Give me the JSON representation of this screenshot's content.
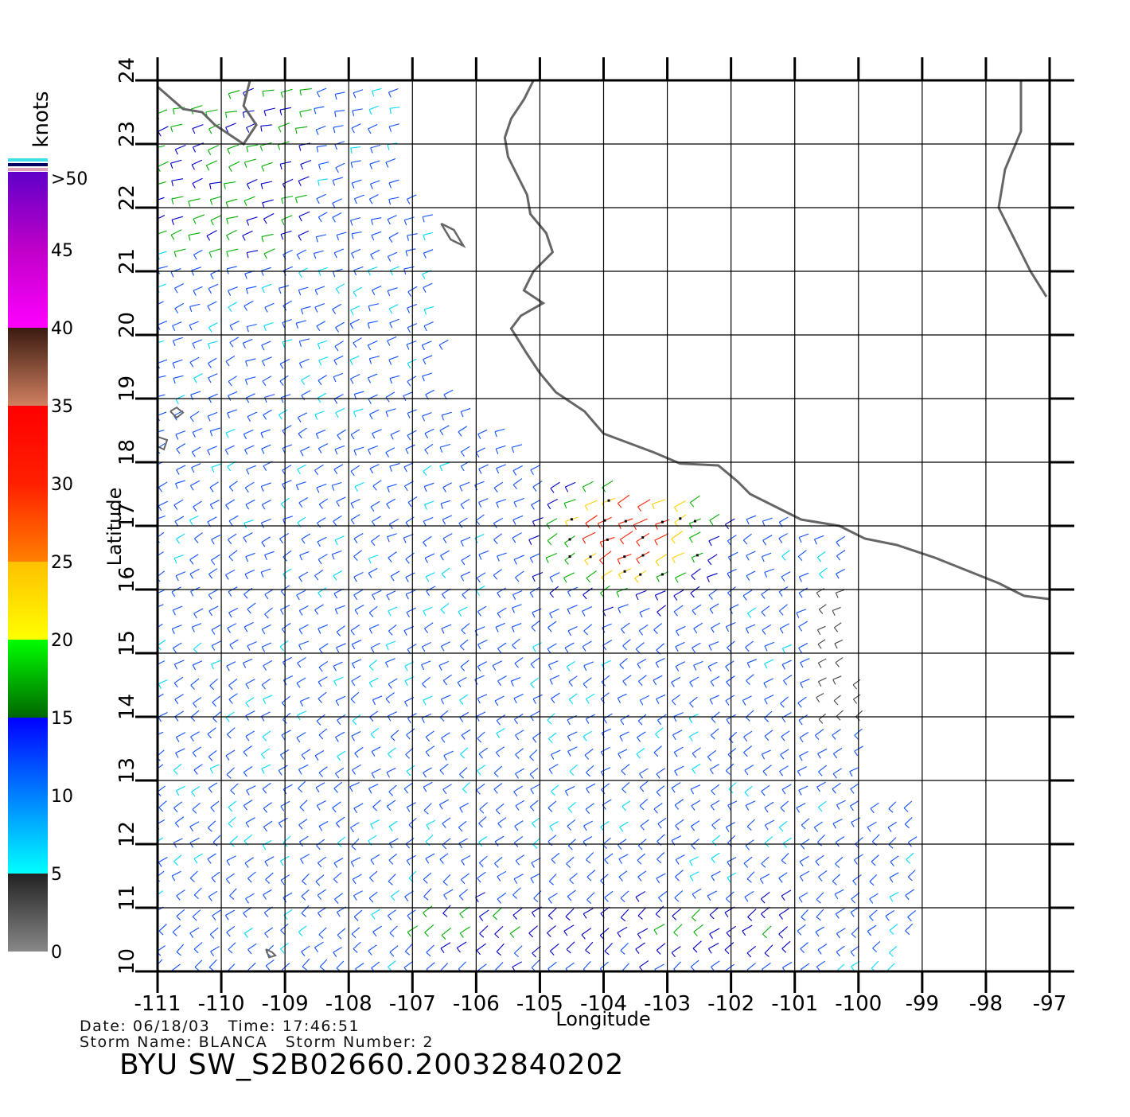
{
  "map": {
    "title": "BYU SW_S2B02660.20032840202",
    "date_line": "Date: 06/18/03   Time: 17:46:51",
    "storm_line": "Storm Name: BLANCA   Storm Number: 2",
    "x_axis_label": "Longitude",
    "y_axis_label": "Latitude",
    "lon_ticks": [
      "-111",
      "-110",
      "-109",
      "-108",
      "-107",
      "-106",
      "-105",
      "-104",
      "-103",
      "-102",
      "-101",
      "-100",
      "-99",
      "-98",
      "-97"
    ],
    "lat_ticks": [
      "10",
      "11",
      "12",
      "13",
      "14",
      "15",
      "16",
      "17",
      "18",
      "19",
      "20",
      "21",
      "22",
      "23",
      "24"
    ],
    "lon_range": [
      -111,
      -97
    ],
    "lat_range": [
      10,
      24
    ]
  },
  "legend": {
    "unit_label": "knots",
    "tick_labels": [
      "0",
      "5",
      "10",
      "15",
      "20",
      "25",
      "30",
      "35",
      "40",
      "45",
      ">50"
    ],
    "bands": [
      {
        "from": 0,
        "to": 5,
        "colors": [
          "#888888",
          "#222222"
        ]
      },
      {
        "from": 5,
        "to": 10,
        "colors": [
          "#00ffff",
          "#0080ff"
        ]
      },
      {
        "from": 10,
        "to": 15,
        "colors": [
          "#0080ff",
          "#0000ff"
        ]
      },
      {
        "from": 15,
        "to": 20,
        "colors": [
          "#006600",
          "#00ff00"
        ]
      },
      {
        "from": 20,
        "to": 25,
        "colors": [
          "#ffff00",
          "#ffc000"
        ]
      },
      {
        "from": 25,
        "to": 30,
        "colors": [
          "#ff8000",
          "#ff2000"
        ]
      },
      {
        "from": 30,
        "to": 35,
        "colors": [
          "#ff2000",
          "#ff0000"
        ]
      },
      {
        "from": 35,
        "to": 40,
        "colors": [
          "#d08060",
          "#3a1a10"
        ]
      },
      {
        "from": 40,
        "to": 45,
        "colors": [
          "#ff00ff",
          "#c000c8"
        ]
      },
      {
        "from": 45,
        "to": 50,
        "colors": [
          "#c000c8",
          "#6000c8"
        ]
      }
    ]
  },
  "colors": {
    "coastline": "#666666",
    "grid": "#000000",
    "calm": "#444444",
    "light": "#00d8ff",
    "moderate": "#1050ff",
    "fresh": "#0000c8",
    "strong": "#00b000",
    "gale": "#ffd000",
    "storm": "#ff2000"
  }
}
